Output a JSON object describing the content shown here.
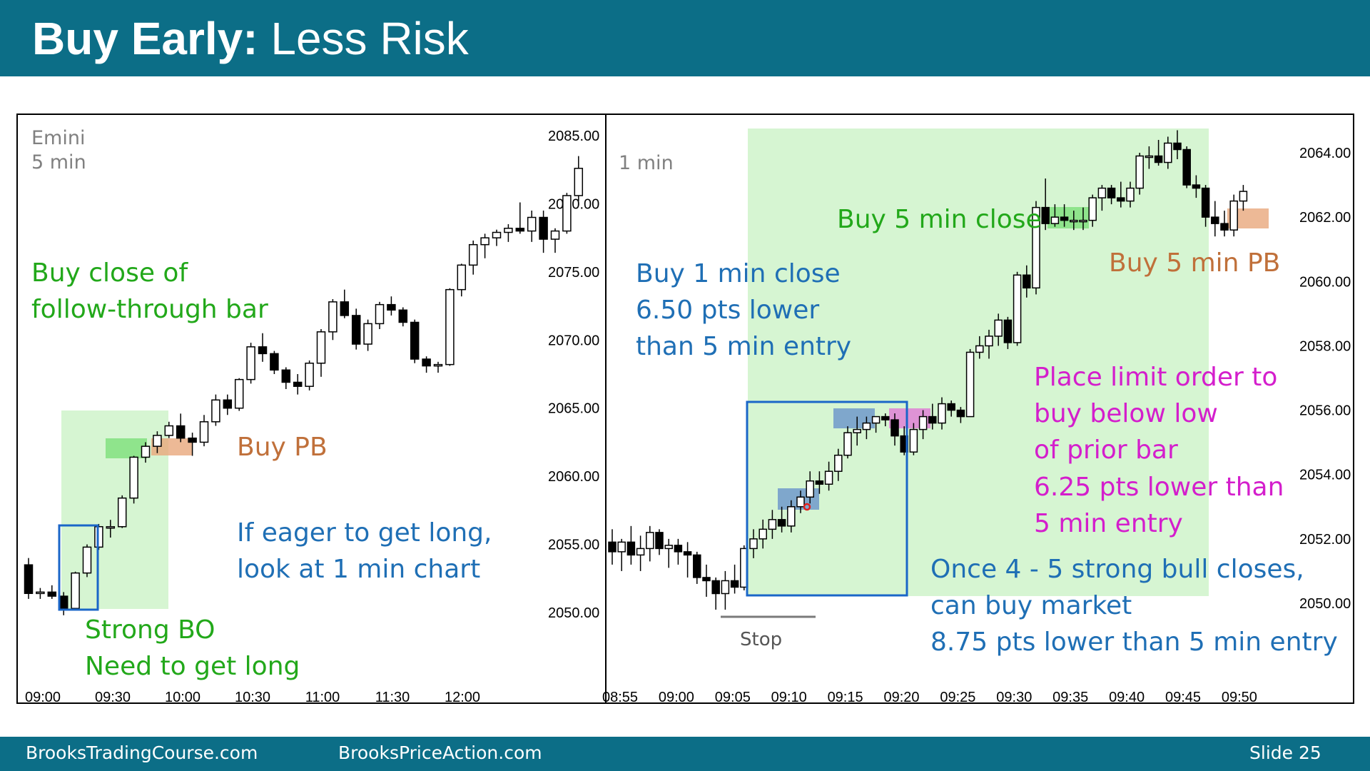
{
  "slide": {
    "title_bold": "Buy Early:",
    "title_rest": "Less Risk",
    "footer_left": "BrooksTradingCourse.com",
    "footer_mid": "BrooksPriceAction.com",
    "footer_right": "Slide  25"
  },
  "colors": {
    "header_bg": "#0c6e87",
    "green_text": "#22a81a",
    "blue_text": "#1f6fb5",
    "orange_text": "#c0703a",
    "magenta_text": "#d41ecc",
    "zone_green": "#d6f5d2",
    "entry_green": "#7de07a",
    "entry_orange": "#e8a87c",
    "entry_blue": "#5a86c9",
    "entry_magenta": "#e07ad6",
    "box_blue": "#1a66c8"
  },
  "chart_data": [
    {
      "type": "candlestick",
      "title": "Emini",
      "subtitle": "5 min",
      "x_ticks": [
        "09:00",
        "09:30",
        "10:00",
        "10:30",
        "11:00",
        "11:30",
        "12:00"
      ],
      "y_ticks": [
        "2085.00",
        "2080.00",
        "2075.00",
        "2070.00",
        "2065.00",
        "2060.00",
        "2055.00",
        "2050.00"
      ],
      "ylim": [
        2050,
        2085
      ],
      "bar_minutes": 5,
      "ohlc": [
        [
          2053.5,
          2054.0,
          2051.0,
          2051.4
        ],
        [
          2051.4,
          2051.8,
          2051.0,
          2051.5
        ],
        [
          2051.5,
          2052.0,
          2051.0,
          2051.2
        ],
        [
          2051.2,
          2051.5,
          2049.8,
          2050.3
        ],
        [
          2050.3,
          2053.0,
          2050.3,
          2052.9
        ],
        [
          2052.9,
          2055.0,
          2052.6,
          2054.8
        ],
        [
          2054.8,
          2056.5,
          2054.6,
          2056.3
        ],
        [
          2056.3,
          2056.8,
          2055.5,
          2056.3
        ],
        [
          2056.3,
          2058.6,
          2056.2,
          2058.4
        ],
        [
          2058.4,
          2061.5,
          2058.0,
          2061.4
        ],
        [
          2061.4,
          2062.5,
          2061.0,
          2062.2
        ],
        [
          2062.2,
          2063.3,
          2061.7,
          2063.0
        ],
        [
          2063.0,
          2064.0,
          2062.8,
          2063.7
        ],
        [
          2063.7,
          2064.6,
          2062.5,
          2062.8
        ],
        [
          2062.8,
          2063.2,
          2061.5,
          2062.5
        ],
        [
          2062.5,
          2064.5,
          2062.2,
          2064.0
        ],
        [
          2064.0,
          2066.0,
          2063.7,
          2065.6
        ],
        [
          2065.6,
          2066.0,
          2064.5,
          2065.0
        ],
        [
          2065.0,
          2067.2,
          2064.8,
          2067.1
        ],
        [
          2067.1,
          2069.8,
          2066.8,
          2069.5
        ],
        [
          2069.5,
          2070.5,
          2068.4,
          2069.0
        ],
        [
          2069.0,
          2069.2,
          2067.5,
          2067.8
        ],
        [
          2067.8,
          2068.0,
          2066.4,
          2066.9
        ],
        [
          2066.9,
          2067.5,
          2066.0,
          2066.6
        ],
        [
          2066.6,
          2068.5,
          2066.3,
          2068.3
        ],
        [
          2068.3,
          2070.8,
          2067.3,
          2070.6
        ],
        [
          2070.6,
          2073.0,
          2070.0,
          2072.8
        ],
        [
          2072.8,
          2073.7,
          2071.6,
          2071.8
        ],
        [
          2071.8,
          2072.3,
          2069.3,
          2069.7
        ],
        [
          2069.7,
          2071.5,
          2069.2,
          2071.2
        ],
        [
          2071.2,
          2072.8,
          2070.8,
          2072.6
        ],
        [
          2072.6,
          2073.2,
          2071.8,
          2072.2
        ],
        [
          2072.2,
          2072.4,
          2071.0,
          2071.3
        ],
        [
          2071.3,
          2071.5,
          2068.3,
          2068.6
        ],
        [
          2068.6,
          2068.8,
          2067.6,
          2068.1
        ],
        [
          2068.1,
          2068.4,
          2067.6,
          2068.2
        ],
        [
          2068.2,
          2073.8,
          2068.1,
          2073.7
        ],
        [
          2073.7,
          2075.6,
          2073.2,
          2075.5
        ],
        [
          2075.5,
          2077.3,
          2074.8,
          2077.0
        ],
        [
          2077.0,
          2077.8,
          2076.0,
          2077.5
        ],
        [
          2077.5,
          2078.1,
          2076.9,
          2077.9
        ],
        [
          2077.9,
          2078.5,
          2077.2,
          2078.2
        ],
        [
          2078.2,
          2080.1,
          2077.8,
          2078.0
        ],
        [
          2078.0,
          2079.5,
          2077.2,
          2079.0
        ],
        [
          2079.0,
          2079.5,
          2076.4,
          2077.4
        ],
        [
          2077.4,
          2078.2,
          2076.4,
          2078.0
        ],
        [
          2078.0,
          2080.8,
          2077.8,
          2080.6
        ],
        [
          2080.6,
          2083.5,
          2080.2,
          2082.6
        ]
      ]
    },
    {
      "type": "candlestick",
      "title": "1 min",
      "x_ticks": [
        "08:55",
        "09:00",
        "09:05",
        "09:10",
        "09:15",
        "09:20",
        "09:25",
        "09:30",
        "09:35",
        "09:40",
        "09:45",
        "09:50"
      ],
      "y_ticks": [
        "2064.00",
        "2062.00",
        "2060.00",
        "2058.00",
        "2056.00",
        "2054.00",
        "2052.00",
        "2050.00"
      ],
      "ylim": [
        2050,
        2064
      ],
      "bar_minutes": 1,
      "ohlc": [
        [
          2051.9,
          2052.3,
          2051.2,
          2051.6
        ],
        [
          2051.6,
          2052.0,
          2051.0,
          2051.9
        ],
        [
          2051.9,
          2052.4,
          2051.2,
          2051.5
        ],
        [
          2051.5,
          2052.1,
          2051.0,
          2051.7
        ],
        [
          2051.7,
          2052.4,
          2051.3,
          2052.2
        ],
        [
          2052.2,
          2052.3,
          2051.5,
          2051.7
        ],
        [
          2051.7,
          2052.0,
          2051.1,
          2051.8
        ],
        [
          2051.8,
          2052.0,
          2051.2,
          2051.6
        ],
        [
          2051.6,
          2051.9,
          2050.8,
          2051.5
        ],
        [
          2051.5,
          2051.6,
          2050.6,
          2050.8
        ],
        [
          2050.8,
          2051.2,
          2050.2,
          2050.7
        ],
        [
          2050.7,
          2050.8,
          2049.8,
          2050.3
        ],
        [
          2050.3,
          2051.0,
          2049.8,
          2050.7
        ],
        [
          2050.7,
          2051.2,
          2050.3,
          2050.5
        ],
        [
          2050.5,
          2051.8,
          2050.4,
          2051.7
        ],
        [
          2051.7,
          2052.3,
          2051.4,
          2052.0
        ],
        [
          2052.0,
          2052.6,
          2051.7,
          2052.3
        ],
        [
          2052.3,
          2052.9,
          2052.0,
          2052.6
        ],
        [
          2052.6,
          2053.0,
          2052.2,
          2052.4
        ],
        [
          2052.4,
          2053.2,
          2052.2,
          2053.0
        ],
        [
          2053.0,
          2053.5,
          2052.8,
          2053.3
        ],
        [
          2053.3,
          2054.1,
          2053.1,
          2053.8
        ],
        [
          2053.8,
          2054.1,
          2053.4,
          2053.7
        ],
        [
          2053.7,
          2054.4,
          2053.5,
          2054.1
        ],
        [
          2054.1,
          2054.8,
          2053.8,
          2054.6
        ],
        [
          2054.6,
          2055.5,
          2054.5,
          2055.3
        ],
        [
          2055.3,
          2055.8,
          2054.9,
          2055.4
        ],
        [
          2055.4,
          2055.8,
          2055.1,
          2055.6
        ],
        [
          2055.6,
          2055.8,
          2055.3,
          2055.8
        ],
        [
          2055.8,
          2055.9,
          2055.5,
          2055.7
        ],
        [
          2055.7,
          2055.9,
          2054.9,
          2055.2
        ],
        [
          2055.2,
          2055.5,
          2054.6,
          2054.7
        ],
        [
          2054.7,
          2055.6,
          2054.6,
          2055.4
        ],
        [
          2055.4,
          2056.0,
          2055.1,
          2055.8
        ],
        [
          2055.8,
          2056.2,
          2055.4,
          2055.6
        ],
        [
          2055.6,
          2056.4,
          2055.4,
          2056.2
        ],
        [
          2056.2,
          2056.3,
          2055.8,
          2056.0
        ],
        [
          2056.0,
          2056.1,
          2055.6,
          2055.8
        ],
        [
          2055.8,
          2057.9,
          2055.8,
          2057.8
        ],
        [
          2057.8,
          2058.3,
          2057.6,
          2058.0
        ],
        [
          2058.0,
          2058.5,
          2057.6,
          2058.3
        ],
        [
          2058.3,
          2059.0,
          2058.0,
          2058.8
        ],
        [
          2058.8,
          2058.9,
          2057.9,
          2058.1
        ],
        [
          2058.1,
          2060.3,
          2058.0,
          2060.2
        ],
        [
          2060.2,
          2060.5,
          2059.5,
          2059.8
        ],
        [
          2059.8,
          2062.5,
          2059.6,
          2062.3
        ],
        [
          2062.3,
          2063.2,
          2061.6,
          2061.8
        ],
        [
          2061.8,
          2062.4,
          2061.7,
          2062.0
        ],
        [
          2062.0,
          2062.4,
          2061.7,
          2061.9
        ],
        [
          2061.9,
          2062.2,
          2061.6,
          2061.9
        ],
        [
          2061.9,
          2062.3,
          2061.6,
          2061.9
        ],
        [
          2061.9,
          2062.7,
          2061.7,
          2062.6
        ],
        [
          2062.6,
          2063.0,
          2062.2,
          2062.9
        ],
        [
          2062.9,
          2063.0,
          2062.4,
          2062.6
        ],
        [
          2062.6,
          2063.1,
          2062.3,
          2062.5
        ],
        [
          2062.5,
          2063.1,
          2062.3,
          2062.9
        ],
        [
          2062.9,
          2064.0,
          2062.7,
          2063.9
        ],
        [
          2063.9,
          2064.2,
          2063.5,
          2063.9
        ],
        [
          2063.9,
          2064.4,
          2063.6,
          2063.7
        ],
        [
          2063.7,
          2064.5,
          2063.5,
          2064.3
        ],
        [
          2064.3,
          2064.7,
          2063.8,
          2064.1
        ],
        [
          2064.1,
          2064.2,
          2062.9,
          2063.0
        ],
        [
          2063.0,
          2063.3,
          2062.6,
          2062.9
        ],
        [
          2062.9,
          2063.0,
          2061.7,
          2062.0
        ],
        [
          2062.0,
          2062.5,
          2061.4,
          2061.8
        ],
        [
          2061.8,
          2062.2,
          2061.4,
          2061.6
        ],
        [
          2061.6,
          2062.7,
          2061.4,
          2062.5
        ],
        [
          2062.5,
          2063.0,
          2062.2,
          2062.8
        ]
      ]
    }
  ],
  "annotations": {
    "left": {
      "buy_close": [
        "Buy close of",
        "follow-through bar"
      ],
      "buy_pb": "Buy PB",
      "eager": [
        "If eager to get long,",
        "look at 1 min chart"
      ],
      "strong_bo": [
        "Strong BO",
        "Need to get long"
      ]
    },
    "right": {
      "buy_5min_close": "Buy 5 min close",
      "buy_5min_pb": "Buy 5 min PB",
      "buy_1min": [
        "Buy 1 min close",
        "6.50 pts lower",
        "than 5 min entry"
      ],
      "limit": [
        "Place limit order to",
        "buy below low",
        "of prior bar",
        "6.25 pts lower than",
        "5 min entry"
      ],
      "market": [
        "Once 4 - 5 strong bull closes,",
        "can buy market",
        "8.75 pts lower than 5 min entry"
      ],
      "stop": "Stop"
    }
  }
}
